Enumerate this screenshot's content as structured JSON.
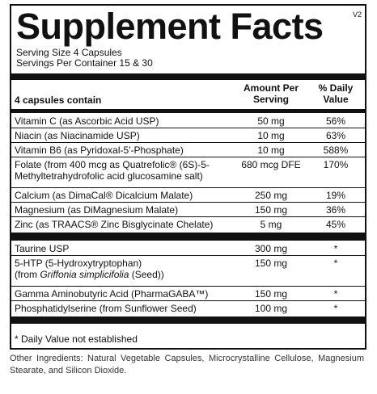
{
  "header": {
    "title": "Supplement Facts",
    "version": "V2",
    "serving_size": "Serving Size 4 Capsules",
    "servings_per_container": "Servings Per Container 15 & 30"
  },
  "table": {
    "columns": [
      "4 capsules contain",
      "Amount Per Serving",
      "% Daily Value"
    ],
    "sections": [
      {
        "rows": [
          {
            "name": [
              "Vitamin C (as Ascorbic Acid USP)"
            ],
            "amount": "50 mg",
            "dv": "56%"
          },
          {
            "name": [
              "Niacin (as Niacinamide USP)"
            ],
            "amount": "10 mg",
            "dv": "63%"
          },
          {
            "name": [
              "Vitamin B6 (as Pyridoxal-5'-Phosphate)"
            ],
            "amount": "10 mg",
            "dv": "588%"
          },
          {
            "name": [
              "Folate (from 400 mcg as Quatrefolic® (6S)-5-",
              "Methyltetrahydrofolic acid glucosamine salt)"
            ],
            "amount": "680 mcg DFE",
            "dv": "170%"
          },
          {
            "name": [
              "Calcium (as DimaCal® Dicalcium Malate)"
            ],
            "amount": "250 mg",
            "dv": "19%"
          },
          {
            "name": [
              "Magnesium (as DiMagnesium Malate)"
            ],
            "amount": "150 mg",
            "dv": "36%"
          },
          {
            "name": [
              "Zinc (as TRAACS® Zinc Bisglycinate Chelate)"
            ],
            "amount": "5 mg",
            "dv": "45%"
          }
        ]
      },
      {
        "rows": [
          {
            "name": [
              "Taurine USP"
            ],
            "amount": "300 mg",
            "dv": "*"
          },
          {
            "name": [
              "5-HTP (5-Hydroxytryptophan)",
              "(from ",
              "Griffonia simplicifolia",
              " (Seed))"
            ],
            "amount": "150 mg",
            "dv": "*"
          },
          {
            "name": [
              "Gamma Aminobutyric Acid (PharmaGABA™)"
            ],
            "amount": "150 mg",
            "dv": "*"
          },
          {
            "name": [
              "Phosphatidylserine (from Sunflower Seed)"
            ],
            "amount": "100 mg",
            "dv": "*"
          }
        ]
      }
    ]
  },
  "footnote": "* Daily Value not established",
  "other_ingredients": "Other Ingredients: Natural Vegetable Capsules, Microcrystalline Cellulose, Magnesium Stearate, and Silicon Dioxide."
}
